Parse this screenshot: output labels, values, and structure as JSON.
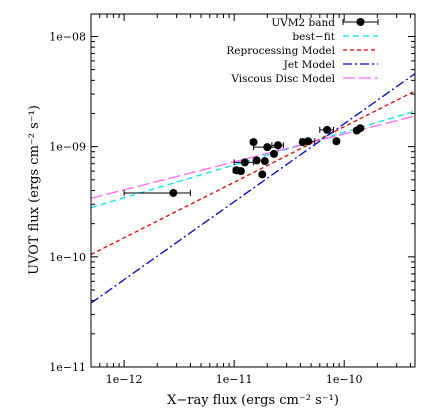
{
  "chart_data": {
    "type": "scatter",
    "xlabel": "X−ray flux (ergs cm⁻² s⁻¹)",
    "ylabel": "UVOT flux (ergs cm⁻² s⁻¹)",
    "xscale": "log",
    "yscale": "log",
    "xlim": [
      5e-13,
      4.4e-10
    ],
    "ylim": [
      1e-11,
      1.6e-08
    ],
    "x_ticks": [
      {
        "value": 1e-12,
        "label": "1e−12"
      },
      {
        "value": 1e-11,
        "label": "1e−11"
      },
      {
        "value": 1e-10,
        "label": "1e−10"
      }
    ],
    "y_ticks": [
      {
        "value": 1e-08,
        "label": "1e−08"
      },
      {
        "value": 1e-09,
        "label": "1e−09"
      },
      {
        "value": 1e-10,
        "label": "1e−10"
      },
      {
        "value": 1e-11,
        "label": "1e−11"
      }
    ],
    "legend_position": "top-right",
    "grid": false,
    "series": [
      {
        "name": "UVM2 band",
        "kind": "points",
        "color": "#000000",
        "points": [
          {
            "x": 2.8e-12,
            "y": 3.8e-10,
            "xerr": [
              1e-12,
              4e-12
            ]
          },
          {
            "x": 1.05e-11,
            "y": 6.1e-10,
            "xerr": [
              9.8e-12,
              1.12e-11
            ]
          },
          {
            "x": 1.15e-11,
            "y": 6e-10,
            "xerr": [
              1.08e-11,
              1.22e-11
            ]
          },
          {
            "x": 1.25e-11,
            "y": 7.2e-10,
            "xerr": [
              1e-11,
              1.5e-11
            ]
          },
          {
            "x": 1.5e-11,
            "y": 1.1e-09,
            "xerr": [
              1.42e-11,
              1.58e-11
            ]
          },
          {
            "x": 1.6e-11,
            "y": 7.5e-10,
            "xerr": [
              1.52e-11,
              1.68e-11
            ]
          },
          {
            "x": 1.8e-11,
            "y": 5.6e-10,
            "xerr": [
              1.72e-11,
              1.88e-11
            ]
          },
          {
            "x": 1.9e-11,
            "y": 7.4e-10,
            "xerr": [
              1.82e-11,
              1.98e-11
            ]
          },
          {
            "x": 2e-11,
            "y": 9.9e-10,
            "xerr": [
              1.5e-11,
              2.5e-11
            ]
          },
          {
            "x": 2.3e-11,
            "y": 8.6e-10,
            "xerr": [
              2.2e-11,
              2.4e-11
            ]
          },
          {
            "x": 2.5e-11,
            "y": 1.03e-09,
            "xerr": [
              2.2e-11,
              2.8e-11
            ]
          },
          {
            "x": 4.2e-11,
            "y": 1.1e-09,
            "xerr": [
              4e-11,
              4.4e-11
            ]
          },
          {
            "x": 4.7e-11,
            "y": 1.12e-09,
            "xerr": [
              4e-11,
              5.4e-11
            ]
          },
          {
            "x": 7e-11,
            "y": 1.42e-09,
            "xerr": [
              6e-11,
              8e-11
            ]
          },
          {
            "x": 8.5e-11,
            "y": 1.12e-09,
            "xerr": [
              8.2e-11,
              8.8e-11
            ]
          },
          {
            "x": 1.3e-10,
            "y": 1.4e-09,
            "xerr": [
              1.25e-10,
              1.35e-10
            ]
          },
          {
            "x": 1.4e-10,
            "y": 1.47e-09,
            "xerr": [
              1.35e-10,
              1.45e-10
            ]
          }
        ]
      },
      {
        "name": "best−fit",
        "kind": "line",
        "color": "#00e5e5",
        "dash": "6,4",
        "x": [
          5e-13,
          4.4e-10
        ],
        "y": [
          2.8e-10,
          2.1e-09
        ]
      },
      {
        "name": "Reprocessing Model",
        "kind": "line",
        "color": "#e00000",
        "dash": "4,3",
        "x": [
          5e-13,
          4.4e-10
        ],
        "y": [
          1.05e-10,
          3.2e-09
        ]
      },
      {
        "name": "Jet Model",
        "kind": "line",
        "color": "#0000c8",
        "dash": "9,3,2,3",
        "x": [
          5e-13,
          4.4e-10
        ],
        "y": [
          3.8e-11,
          4.6e-09
        ]
      },
      {
        "name": "Viscous Disc Model",
        "kind": "line",
        "color": "#ff66ff",
        "dash": "12,4",
        "x": [
          5e-13,
          4.4e-10
        ],
        "y": [
          3.4e-10,
          1.9e-09
        ]
      }
    ]
  }
}
